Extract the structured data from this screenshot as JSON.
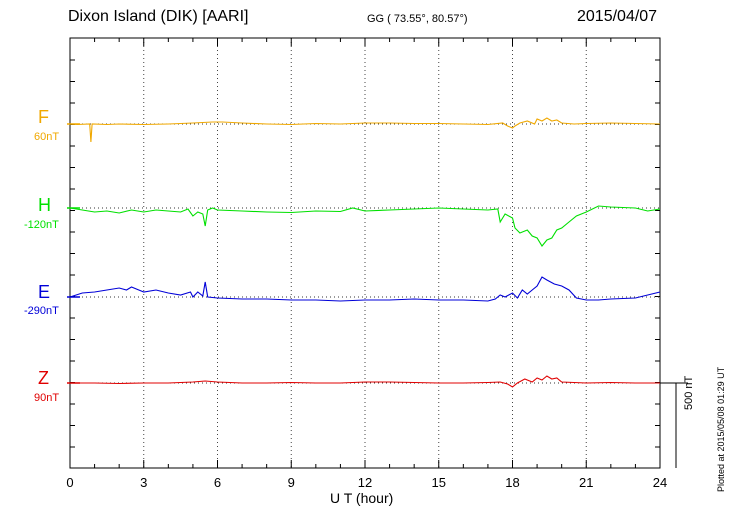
{
  "header": {
    "station": "Dixon Island (DIK)  [AARI]",
    "coords": "GG ( 73.55°,  80.57°)",
    "date": "2015/04/07"
  },
  "plotted_text": "Plotted at 2015/05/08 01:29 UT",
  "chart_data": {
    "type": "line",
    "xlabel": "U T (hour)",
    "xlim": [
      0,
      24
    ],
    "x_ticks": [
      0,
      3,
      6,
      9,
      12,
      15,
      18,
      21,
      24
    ],
    "scale_bar_label": "500 nT",
    "series": [
      {
        "name": "F",
        "baseline_label": "60nT",
        "color": "#f0a800",
        "points": [
          [
            0,
            124
          ],
          [
            0.3,
            124.5
          ],
          [
            0.8,
            124
          ],
          [
            0.85,
            142
          ],
          [
            0.9,
            124
          ],
          [
            1.5,
            124.5
          ],
          [
            2,
            124
          ],
          [
            3,
            124.5
          ],
          [
            4,
            124
          ],
          [
            5,
            123
          ],
          [
            5.8,
            122
          ],
          [
            6.2,
            122
          ],
          [
            7,
            123
          ],
          [
            8,
            124
          ],
          [
            9,
            124.5
          ],
          [
            10,
            123.5
          ],
          [
            11,
            124
          ],
          [
            12,
            123
          ],
          [
            13,
            123
          ],
          [
            14,
            123.5
          ],
          [
            15,
            123.5
          ],
          [
            16,
            124
          ],
          [
            17,
            124.5
          ],
          [
            17.6,
            123
          ],
          [
            17.8,
            126
          ],
          [
            18,
            128
          ],
          [
            18.1,
            126
          ],
          [
            18.3,
            123
          ],
          [
            18.6,
            121
          ],
          [
            18.9,
            124
          ],
          [
            19,
            119
          ],
          [
            19.2,
            121
          ],
          [
            19.4,
            118
          ],
          [
            19.6,
            121
          ],
          [
            19.8,
            120
          ],
          [
            20,
            123
          ],
          [
            20.5,
            124
          ],
          [
            21,
            123.5
          ],
          [
            22,
            123
          ],
          [
            23,
            123.5
          ],
          [
            24,
            124
          ]
        ]
      },
      {
        "name": "H",
        "baseline_label": "-120nT",
        "color": "#00e000",
        "points": [
          [
            0,
            208
          ],
          [
            0.5,
            210
          ],
          [
            1,
            212
          ],
          [
            1.5,
            211
          ],
          [
            2,
            213
          ],
          [
            2.5,
            210
          ],
          [
            3,
            212
          ],
          [
            3.5,
            210
          ],
          [
            4,
            211
          ],
          [
            4.5,
            212
          ],
          [
            4.8,
            209
          ],
          [
            5,
            216
          ],
          [
            5.2,
            212
          ],
          [
            5.4,
            214
          ],
          [
            5.5,
            226
          ],
          [
            5.6,
            210
          ],
          [
            5.8,
            208
          ],
          [
            6,
            210
          ],
          [
            7,
            211
          ],
          [
            8,
            212
          ],
          [
            9,
            212.5
          ],
          [
            10,
            211
          ],
          [
            11,
            211.5
          ],
          [
            11.5,
            208
          ],
          [
            12,
            211
          ],
          [
            13,
            210
          ],
          [
            14,
            209
          ],
          [
            15,
            208
          ],
          [
            16,
            209
          ],
          [
            17,
            210
          ],
          [
            17.4,
            209
          ],
          [
            17.5,
            222
          ],
          [
            17.7,
            214
          ],
          [
            18,
            218
          ],
          [
            18.1,
            228
          ],
          [
            18.3,
            233
          ],
          [
            18.6,
            230
          ],
          [
            18.8,
            236
          ],
          [
            19,
            238
          ],
          [
            19.2,
            246
          ],
          [
            19.4,
            240
          ],
          [
            19.6,
            238
          ],
          [
            19.8,
            230
          ],
          [
            20,
            228
          ],
          [
            20.3,
            222
          ],
          [
            20.6,
            216
          ],
          [
            21,
            212
          ],
          [
            21.5,
            206
          ],
          [
            22,
            207
          ],
          [
            23,
            208
          ],
          [
            23.5,
            211
          ],
          [
            24,
            209
          ]
        ]
      },
      {
        "name": "E",
        "baseline_label": "-290nT",
        "color": "#0000d8",
        "points": [
          [
            0,
            297
          ],
          [
            0.5,
            293
          ],
          [
            1,
            292
          ],
          [
            1.5,
            290
          ],
          [
            2,
            288
          ],
          [
            2.3,
            290
          ],
          [
            2.5,
            287
          ],
          [
            2.8,
            290
          ],
          [
            3,
            292
          ],
          [
            3.5,
            290
          ],
          [
            4,
            293
          ],
          [
            4.5,
            295
          ],
          [
            4.9,
            292
          ],
          [
            5,
            297
          ],
          [
            5.2,
            292
          ],
          [
            5.4,
            296
          ],
          [
            5.5,
            282
          ],
          [
            5.6,
            297
          ],
          [
            6,
            298
          ],
          [
            7,
            299
          ],
          [
            8,
            299
          ],
          [
            9,
            300
          ],
          [
            10,
            300
          ],
          [
            11,
            301
          ],
          [
            12,
            300
          ],
          [
            13,
            300
          ],
          [
            14,
            299
          ],
          [
            15,
            300
          ],
          [
            16,
            300
          ],
          [
            17,
            301
          ],
          [
            17.3,
            299
          ],
          [
            17.5,
            295
          ],
          [
            17.7,
            297
          ],
          [
            18,
            293
          ],
          [
            18.2,
            298
          ],
          [
            18.4,
            290
          ],
          [
            18.6,
            294
          ],
          [
            18.8,
            290
          ],
          [
            19,
            286
          ],
          [
            19.2,
            277
          ],
          [
            19.4,
            280
          ],
          [
            19.7,
            284
          ],
          [
            20,
            286
          ],
          [
            20.3,
            290
          ],
          [
            20.6,
            298
          ],
          [
            21,
            300
          ],
          [
            21.5,
            300
          ],
          [
            22,
            299
          ],
          [
            23,
            298
          ],
          [
            23.5,
            295
          ],
          [
            24,
            292
          ]
        ]
      },
      {
        "name": "Z",
        "baseline_label": "90nT",
        "color": "#e00000",
        "points": [
          [
            0,
            383
          ],
          [
            1,
            383
          ],
          [
            2,
            383.5
          ],
          [
            3,
            383
          ],
          [
            4,
            383
          ],
          [
            5,
            382
          ],
          [
            5.5,
            381
          ],
          [
            6,
            382
          ],
          [
            7,
            383
          ],
          [
            8,
            383
          ],
          [
            9,
            382.5
          ],
          [
            10,
            383
          ],
          [
            11,
            383
          ],
          [
            12,
            382
          ],
          [
            13,
            382
          ],
          [
            14,
            382.5
          ],
          [
            15,
            383
          ],
          [
            16,
            383
          ],
          [
            17,
            382.5
          ],
          [
            17.5,
            382
          ],
          [
            17.8,
            384
          ],
          [
            18,
            387
          ],
          [
            18.2,
            383
          ],
          [
            18.5,
            379
          ],
          [
            18.8,
            382
          ],
          [
            19,
            378
          ],
          [
            19.2,
            380
          ],
          [
            19.4,
            376
          ],
          [
            19.6,
            379
          ],
          [
            19.8,
            378
          ],
          [
            20,
            382
          ],
          [
            20.5,
            382.5
          ],
          [
            21,
            383
          ],
          [
            22,
            382.5
          ],
          [
            23,
            383
          ],
          [
            24,
            383
          ]
        ]
      }
    ]
  }
}
